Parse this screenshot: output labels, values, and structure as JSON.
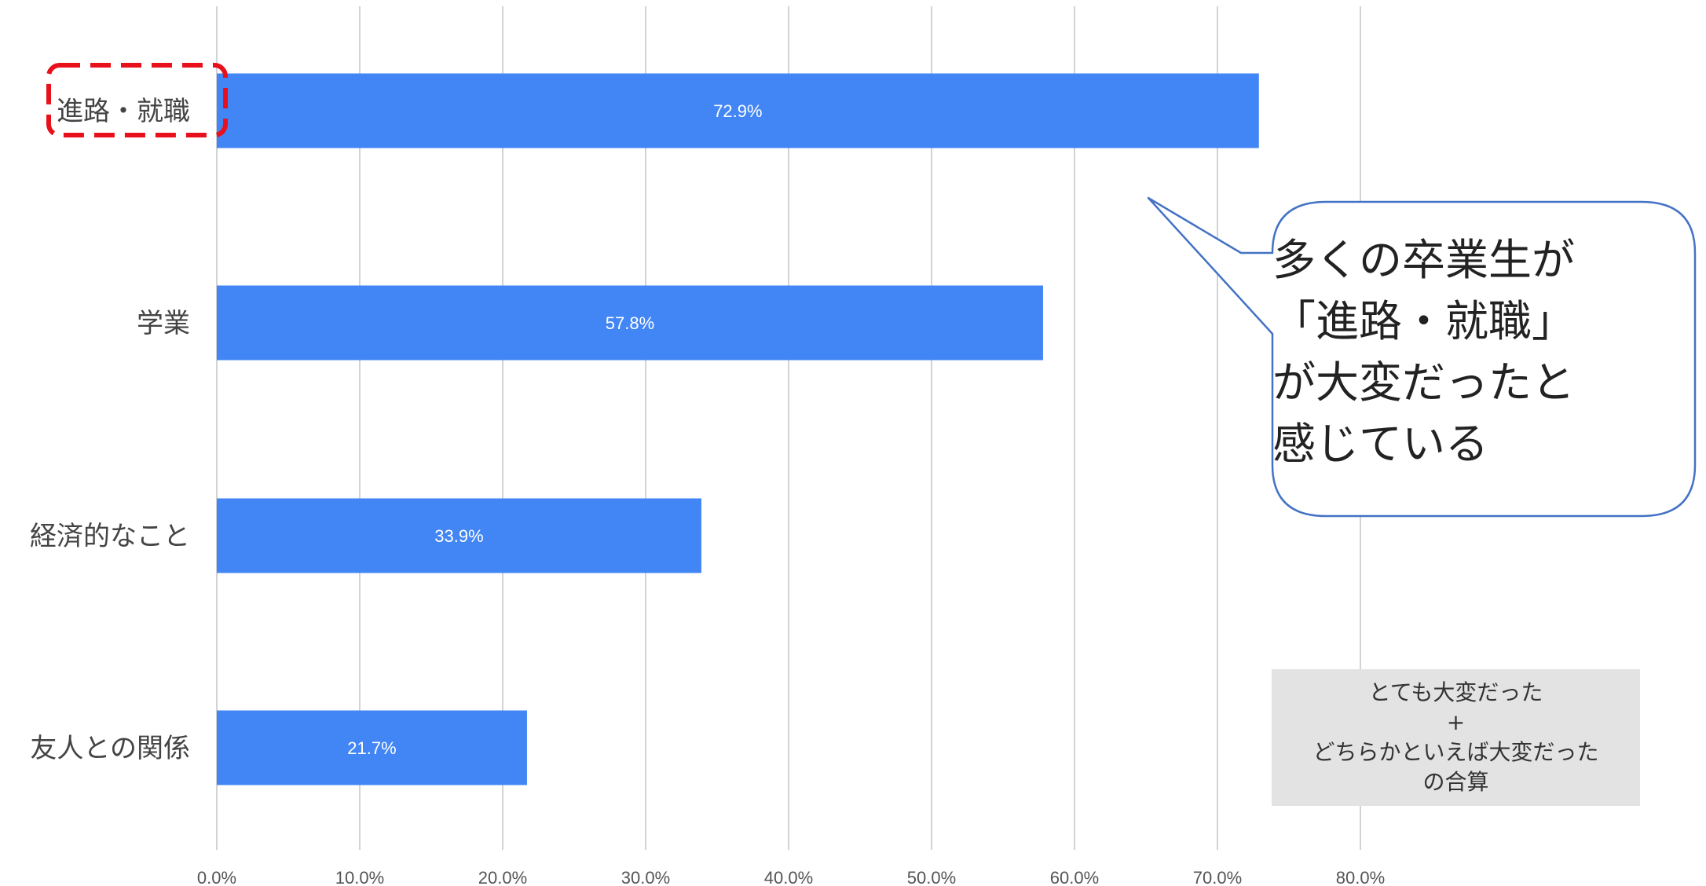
{
  "chart_data": {
    "type": "bar",
    "orientation": "horizontal",
    "categories": [
      "進路・就職",
      "学業",
      "経済的なこと",
      "友人との関係"
    ],
    "values": [
      72.9,
      57.8,
      33.9,
      21.7
    ],
    "data_labels": [
      "72.9%",
      "57.8%",
      "33.9%",
      "21.7%"
    ],
    "x_ticks": [
      "0.0%",
      "10.0%",
      "20.0%",
      "30.0%",
      "40.0%",
      "50.0%",
      "60.0%",
      "70.0%",
      "80.0%"
    ],
    "xlim": [
      0,
      80
    ],
    "grid": true,
    "highlighted_category": "進路・就職"
  },
  "annotations": {
    "callout_lines": [
      "多くの卒業生が",
      "「進路・就職」",
      "が大変だったと",
      "感じている"
    ],
    "note_lines": [
      "とても大変だった",
      "+",
      "どちらかといえば大変だった",
      "の合算"
    ]
  },
  "colors": {
    "bar": "#4285f4",
    "gridline": "#d3d3d3",
    "highlight_border": "#e8101a",
    "callout_border": "#4472c4",
    "note_background": "#e3e3e3"
  }
}
